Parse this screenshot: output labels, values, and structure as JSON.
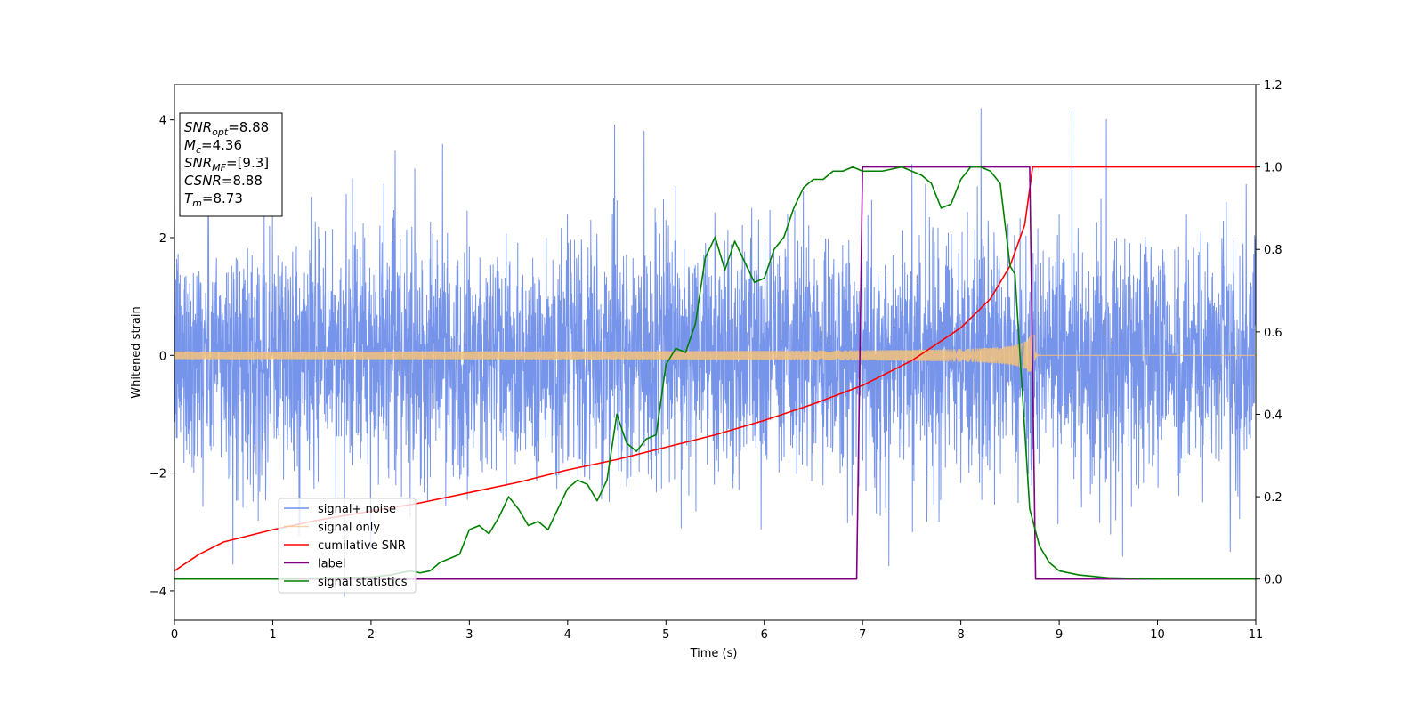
{
  "chart_data": {
    "type": "line",
    "xlabel": "Time (s)",
    "ylabel_left": "Whitened strain",
    "ylabel_right": "",
    "xlim": [
      0,
      11
    ],
    "ylim_left": [
      -4.5,
      4.6
    ],
    "ylim_right": [
      -0.1,
      1.2
    ],
    "x_ticks": [
      "0",
      "1",
      "2",
      "3",
      "4",
      "5",
      "6",
      "7",
      "8",
      "9",
      "10",
      "11"
    ],
    "y_left_ticks": [
      "−4",
      "−2",
      "0",
      "2",
      "4"
    ],
    "y_right_ticks": [
      "0.0",
      "0.2",
      "0.4",
      "0.6",
      "0.8",
      "1.0",
      "1.2"
    ],
    "grid": false,
    "legend_position": "lower-left",
    "info_box": [
      {
        "main": "SNR",
        "sub": "opt",
        "value": "=8.88"
      },
      {
        "main": "M",
        "sub": "c",
        "value": "=4.36"
      },
      {
        "main": "SNR",
        "sub": "MF",
        "value": "=[9.3]"
      },
      {
        "main": "CSNR",
        "sub": "",
        "value": "=8.88"
      },
      {
        "main": "T",
        "sub": "m",
        "value": "=8.73"
      }
    ],
    "series": [
      {
        "name": "signal+ noise",
        "axis": "left",
        "color": "#6f8ee8",
        "kind": "noise",
        "sigma": 1.0,
        "x_range": [
          0,
          11
        ]
      },
      {
        "name": "signal only",
        "axis": "left",
        "color": "#f4c27a",
        "kind": "chirp",
        "merger_time": 8.73,
        "amplitude_start": 0.05,
        "amplitude_peak": 0.55,
        "x_range": [
          0,
          11
        ]
      },
      {
        "name": "cumilative SNR",
        "axis": "right",
        "color": "#ff0000",
        "x": [
          0,
          0.25,
          0.5,
          1,
          1.5,
          2,
          2.5,
          3,
          3.5,
          4,
          4.5,
          5,
          5.5,
          6,
          6.5,
          7,
          7.5,
          8,
          8.3,
          8.5,
          8.65,
          8.73,
          9,
          10,
          11
        ],
        "y": [
          0.02,
          0.06,
          0.09,
          0.12,
          0.145,
          0.165,
          0.185,
          0.21,
          0.235,
          0.265,
          0.29,
          0.32,
          0.35,
          0.385,
          0.425,
          0.47,
          0.53,
          0.61,
          0.68,
          0.76,
          0.86,
          1.0,
          1.0,
          1.0,
          1.0
        ]
      },
      {
        "name": "label",
        "axis": "right",
        "color": "#800080",
        "x": [
          0,
          6.94,
          7.0,
          8.7,
          8.76,
          11
        ],
        "y": [
          0,
          0,
          1,
          1,
          0,
          0
        ]
      },
      {
        "name": "signal statistics",
        "axis": "right",
        "color": "#008000",
        "x": [
          0,
          1,
          2,
          2.2,
          2.4,
          2.5,
          2.6,
          2.7,
          2.8,
          2.9,
          3.0,
          3.1,
          3.2,
          3.3,
          3.4,
          3.5,
          3.6,
          3.7,
          3.8,
          3.9,
          4.0,
          4.1,
          4.2,
          4.3,
          4.4,
          4.5,
          4.6,
          4.7,
          4.8,
          4.9,
          5.0,
          5.1,
          5.2,
          5.3,
          5.4,
          5.5,
          5.6,
          5.7,
          5.8,
          5.9,
          6.0,
          6.1,
          6.2,
          6.3,
          6.4,
          6.5,
          6.6,
          6.7,
          6.8,
          6.9,
          7.0,
          7.2,
          7.4,
          7.6,
          7.7,
          7.8,
          7.9,
          8.0,
          8.1,
          8.2,
          8.3,
          8.4,
          8.5,
          8.55,
          8.6,
          8.7,
          8.8,
          8.9,
          9.0,
          9.2,
          9.5,
          10,
          11
        ],
        "y": [
          0.0,
          0.0,
          0.005,
          0.01,
          0.02,
          0.015,
          0.02,
          0.04,
          0.05,
          0.06,
          0.12,
          0.13,
          0.11,
          0.15,
          0.2,
          0.17,
          0.13,
          0.14,
          0.12,
          0.17,
          0.22,
          0.24,
          0.23,
          0.19,
          0.24,
          0.4,
          0.33,
          0.31,
          0.34,
          0.35,
          0.52,
          0.56,
          0.55,
          0.62,
          0.78,
          0.83,
          0.75,
          0.82,
          0.77,
          0.72,
          0.73,
          0.8,
          0.83,
          0.9,
          0.95,
          0.97,
          0.97,
          0.99,
          0.99,
          1.0,
          0.99,
          0.99,
          1.0,
          0.98,
          0.96,
          0.9,
          0.91,
          0.97,
          1.0,
          1.0,
          0.99,
          0.96,
          0.76,
          0.74,
          0.55,
          0.17,
          0.08,
          0.04,
          0.02,
          0.01,
          0.003,
          0.0,
          0.0
        ]
      }
    ]
  }
}
